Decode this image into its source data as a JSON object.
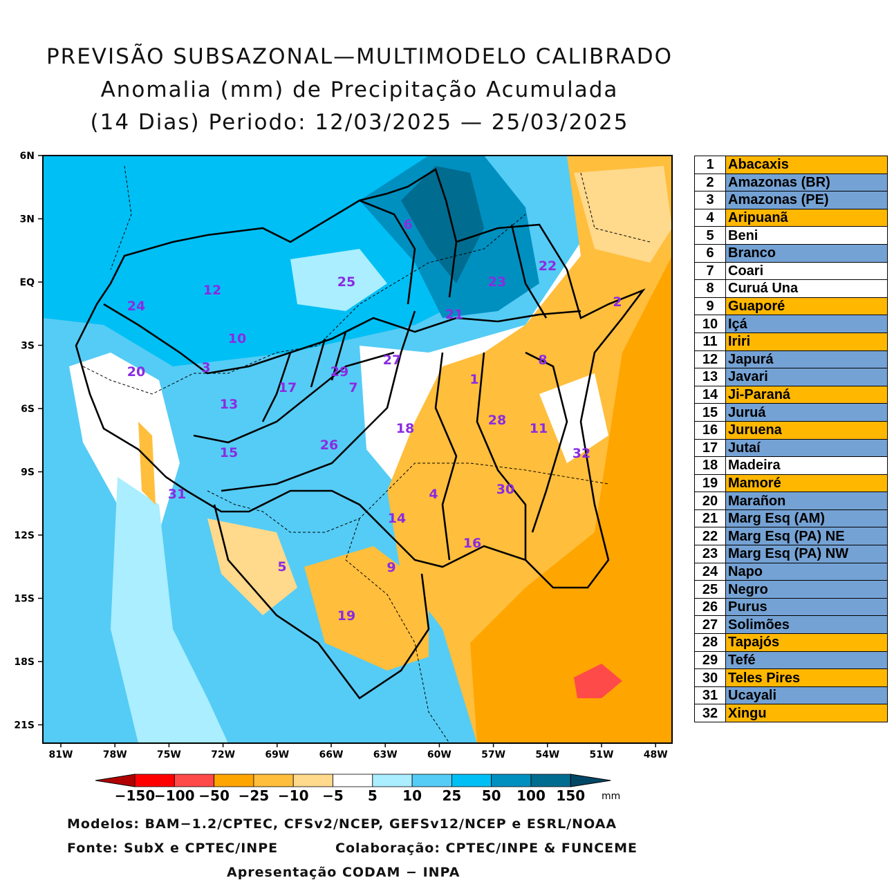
{
  "title": {
    "line1": "PREVISÃO SUBSAZONAL—MULTIMODELO CALIBRADO",
    "line2": "Anomalia (mm) de Precipitação Acumulada",
    "line3": "(14 Dias) Periodo: 12/03/2025 — 25/03/2025"
  },
  "axes": {
    "lat_labels": [
      "6N",
      "3N",
      "EQ",
      "3S",
      "6S",
      "9S",
      "12S",
      "15S",
      "18S",
      "21S"
    ],
    "lon_labels": [
      "81W",
      "78W",
      "75W",
      "72W",
      "69W",
      "66W",
      "63W",
      "60W",
      "57W",
      "54W",
      "51W",
      "48W"
    ]
  },
  "basin_labels": [
    "1",
    "2",
    "3",
    "4",
    "5",
    "6",
    "7",
    "8",
    "9",
    "10",
    "11",
    "12",
    "13",
    "14",
    "15",
    "16",
    "17",
    "18",
    "19",
    "20",
    "21",
    "22",
    "23",
    "24",
    "25",
    "26",
    "27",
    "28",
    "29",
    "30",
    "31",
    "32"
  ],
  "colors": {
    "orange": "#ffb700",
    "blue": "#75a2d4",
    "white": "#ffffff",
    "label": "#8a2be2"
  },
  "legend": [
    {
      "num": "1",
      "name": "Abacaxis",
      "color": "#ffb700"
    },
    {
      "num": "2",
      "name": "Amazonas (BR)",
      "color": "#75a2d4"
    },
    {
      "num": "3",
      "name": "Amazonas (PE)",
      "color": "#75a2d4"
    },
    {
      "num": "4",
      "name": "Aripuanã",
      "color": "#ffb700"
    },
    {
      "num": "5",
      "name": "Beni",
      "color": "#ffffff"
    },
    {
      "num": "6",
      "name": "Branco",
      "color": "#75a2d4"
    },
    {
      "num": "7",
      "name": "Coari",
      "color": "#ffffff"
    },
    {
      "num": "8",
      "name": "Curuá Una",
      "color": "#ffffff"
    },
    {
      "num": "9",
      "name": "Guaporé",
      "color": "#ffb700"
    },
    {
      "num": "10",
      "name": "Içá",
      "color": "#75a2d4"
    },
    {
      "num": "11",
      "name": "Iriri",
      "color": "#ffb700"
    },
    {
      "num": "12",
      "name": "Japurá",
      "color": "#75a2d4"
    },
    {
      "num": "13",
      "name": "Javari",
      "color": "#75a2d4"
    },
    {
      "num": "14",
      "name": "Ji-Paraná",
      "color": "#ffb700"
    },
    {
      "num": "15",
      "name": "Juruá",
      "color": "#75a2d4"
    },
    {
      "num": "16",
      "name": "Juruena",
      "color": "#ffb700"
    },
    {
      "num": "17",
      "name": "Jutaí",
      "color": "#75a2d4"
    },
    {
      "num": "18",
      "name": "Madeira",
      "color": "#ffffff"
    },
    {
      "num": "19",
      "name": "Mamoré",
      "color": "#ffb700"
    },
    {
      "num": "20",
      "name": "Marañon",
      "color": "#75a2d4"
    },
    {
      "num": "21",
      "name": "Marg Esq (AM)",
      "color": "#75a2d4"
    },
    {
      "num": "22",
      "name": "Marg Esq (PA) NE",
      "color": "#75a2d4"
    },
    {
      "num": "23",
      "name": "Marg Esq (PA) NW",
      "color": "#75a2d4"
    },
    {
      "num": "24",
      "name": "Napo",
      "color": "#75a2d4"
    },
    {
      "num": "25",
      "name": "Negro",
      "color": "#75a2d4"
    },
    {
      "num": "26",
      "name": "Purus",
      "color": "#75a2d4"
    },
    {
      "num": "27",
      "name": "Solimões",
      "color": "#75a2d4"
    },
    {
      "num": "28",
      "name": "Tapajós",
      "color": "#ffb700"
    },
    {
      "num": "29",
      "name": "Tefé",
      "color": "#75a2d4"
    },
    {
      "num": "30",
      "name": "Teles Pires",
      "color": "#ffb700"
    },
    {
      "num": "31",
      "name": "Ucayali",
      "color": "#75a2d4"
    },
    {
      "num": "32",
      "name": "Xingu",
      "color": "#ffb700"
    }
  ],
  "colorbar": {
    "labels": [
      "−150",
      "−100",
      "−50",
      "−25",
      "−10",
      "−5",
      "5",
      "10",
      "25",
      "50",
      "100",
      "150"
    ],
    "unit": "mm",
    "colors": [
      "#ff0000",
      "#ff4a4a",
      "#ffa500",
      "#ffbe3c",
      "#ffd98c",
      "#ffffff",
      "#aaeeff",
      "#55ccf5",
      "#00bff5",
      "#0090c0",
      "#006c90"
    ],
    "low_end": "#b00000",
    "high_end": "#004766"
  },
  "credits": {
    "models": "Modelos: BAM−1.2/CPTEC, CFSv2/NCEP, GEFSv12/NCEP e ESRL/NOAA",
    "source": "Fonte: SubX e CPTEC/INPE",
    "collab": "Colaboração: CPTEC/INPE & FUNCEME",
    "presentation": "Apresentação CODAM − INPA"
  }
}
